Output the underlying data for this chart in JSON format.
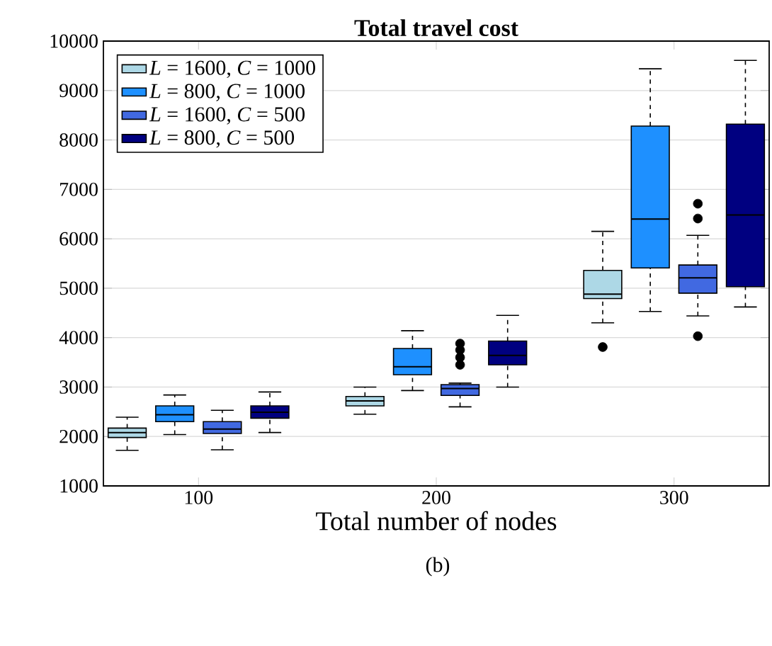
{
  "chart_data": {
    "type": "box",
    "title": "**Total travel cost**",
    "xlabel": "Total number of nodes",
    "annotations": [
      "(b)"
    ],
    "categories": [
      "100",
      "200",
      "300"
    ],
    "ylim": [
      1000,
      10000
    ],
    "yticks": [
      1000,
      2000,
      3000,
      4000,
      5000,
      6000,
      7000,
      8000,
      9000,
      10000
    ],
    "grid": "y",
    "legend": "top left",
    "line_style": "dashed",
    "series": [
      {
        "name": "*L* = 1600, *C* = 1000",
        "color": "#add8e6",
        "boxes": [
          {
            "low": 1720,
            "q1": 1980,
            "median": 2080,
            "q3": 2170,
            "high": 2390
          },
          {
            "low": 2450,
            "q1": 2620,
            "median": 2720,
            "q3": 2810,
            "high": 3000
          },
          {
            "low": 4300,
            "q1": 4790,
            "median": 4880,
            "q3": 5360,
            "high": 6150,
            "outliers": [
              3810
            ]
          }
        ]
      },
      {
        "name": "*L* = 800, *C* = 1000",
        "color": "#1e90ff",
        "boxes": [
          {
            "low": 2040,
            "q1": 2300,
            "median": 2440,
            "q3": 2620,
            "high": 2840
          },
          {
            "low": 2930,
            "q1": 3250,
            "median": 3410,
            "q3": 3780,
            "high": 4140
          },
          {
            "low": 4530,
            "q1": 5410,
            "median": 6400,
            "q3": 8280,
            "high": 9440
          }
        ]
      },
      {
        "name": "*L* = 1600, *C* = 500",
        "color": "#4169e1",
        "boxes": [
          {
            "low": 1730,
            "q1": 2060,
            "median": 2150,
            "q3": 2300,
            "high": 2530
          },
          {
            "low": 2600,
            "q1": 2830,
            "median": 2970,
            "q3": 3050,
            "high": 3080,
            "outliers": [
              3450,
              3600,
              3750,
              3880
            ]
          },
          {
            "low": 4440,
            "q1": 4900,
            "median": 5210,
            "q3": 5470,
            "high": 6070,
            "outliers": [
              6710,
              6410,
              4030
            ]
          }
        ]
      },
      {
        "name": "*L* = 800, *C* = 500",
        "color": "#000080",
        "boxes": [
          {
            "low": 2080,
            "q1": 2370,
            "median": 2490,
            "q3": 2620,
            "high": 2900
          },
          {
            "low": 3000,
            "q1": 3450,
            "median": 3640,
            "q3": 3930,
            "high": 4450
          },
          {
            "low": 4620,
            "q1": 5030,
            "median": 6480,
            "q3": 8320,
            "high": 9610
          }
        ]
      }
    ]
  }
}
